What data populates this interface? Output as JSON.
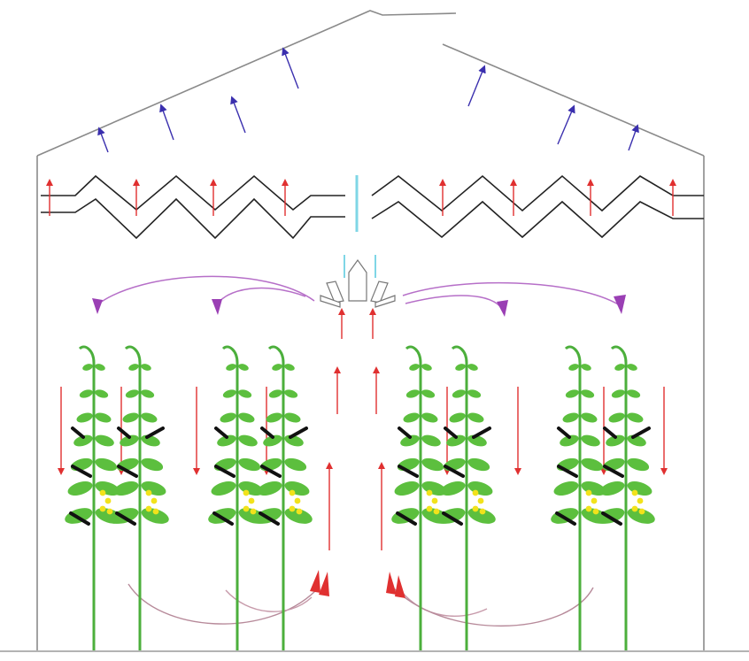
{
  "diagram": {
    "kind": "greenhouse-airflow",
    "plant_count": 8,
    "colors": {
      "structure": "#8a8a8a",
      "ground": "#9a9a9a",
      "zigzag": "#222222",
      "vent_arrow": "#3a2fae",
      "heat_arrow": "#e03030",
      "down_arrow": "#e03030",
      "circulation": "#b66fc8",
      "return_curve": "#b78a9a",
      "divider": "#7fd6e6",
      "stem": "#4caf3c",
      "leaf": "#5cbf3e",
      "dark_leaf": "#111111",
      "flower": "#f2e21b"
    },
    "icons": [
      "fan-icon"
    ]
  }
}
